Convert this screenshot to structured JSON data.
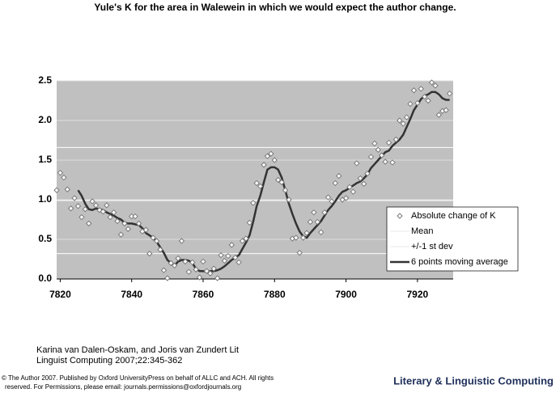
{
  "chart_data": {
    "type": "scatter",
    "title": "Yule's K for the area in Walewein in which we would expect the author change.",
    "x": [
      7819,
      7820,
      7821,
      7822,
      7823,
      7824,
      7825,
      7826,
      7827,
      7828,
      7829,
      7830,
      7831,
      7832,
      7833,
      7834,
      7835,
      7836,
      7837,
      7838,
      7839,
      7840,
      7841,
      7842,
      7843,
      7844,
      7845,
      7846,
      7847,
      7848,
      7849,
      7850,
      7851,
      7852,
      7853,
      7854,
      7855,
      7856,
      7857,
      7858,
      7859,
      7860,
      7861,
      7862,
      7863,
      7864,
      7865,
      7866,
      7867,
      7868,
      7869,
      7870,
      7871,
      7872,
      7873,
      7874,
      7875,
      7876,
      7877,
      7878,
      7879,
      7880,
      7881,
      7882,
      7883,
      7884,
      7885,
      7886,
      7887,
      7888,
      7889,
      7890,
      7891,
      7892,
      7893,
      7894,
      7895,
      7896,
      7897,
      7898,
      7899,
      7900,
      7901,
      7902,
      7903,
      7904,
      7905,
      7906,
      7907,
      7908,
      7909,
      7910,
      7911,
      7912,
      7913,
      7914,
      7915,
      7916,
      7917,
      7918,
      7919,
      7920,
      7921,
      7922,
      7923,
      7924,
      7925,
      7926,
      7927,
      7928,
      7929
    ],
    "xlim": [
      7819,
      7930
    ],
    "xticks": [
      7820,
      7840,
      7860,
      7880,
      7900,
      7920
    ],
    "ylim": [
      0,
      2.5
    ],
    "yticks": [
      {
        "value": 0,
        "label": "0.0"
      },
      0.5,
      {
        "value": 1,
        "label": "1.0"
      },
      1.5,
      {
        "value": 2,
        "label": "2.0"
      },
      2.5
    ],
    "grid": true,
    "legend_position": "right",
    "series": [
      {
        "name": "Absolute change of K",
        "style": "marker",
        "color": "#7a7a7a",
        "values": [
          1.12,
          1.34,
          1.28,
          1.13,
          0.89,
          1.02,
          0.92,
          0.78,
          0.88,
          0.7,
          0.98,
          0.93,
          0.87,
          0.85,
          0.93,
          0.78,
          0.84,
          0.73,
          0.56,
          0.7,
          0.63,
          0.79,
          0.79,
          0.7,
          0.6,
          0.62,
          0.32,
          0.52,
          0.48,
          0.37,
          0.11,
          0.01,
          0.2,
          0.17,
          0.26,
          0.48,
          0.22,
          0.09,
          0.21,
          0.12,
          0.02,
          0.22,
          0.1,
          0.07,
          0.13,
          0.01,
          0.3,
          0.23,
          0.29,
          0.43,
          0.27,
          0.21,
          0.48,
          0.51,
          0.71,
          0.96,
          1.21,
          1.17,
          1.44,
          1.55,
          1.58,
          1.5,
          1.25,
          1.22,
          1.12,
          1.0,
          0.51,
          0.52,
          0.33,
          0.52,
          0.58,
          0.72,
          0.84,
          0.72,
          0.59,
          0.84,
          1.03,
          0.98,
          1.21,
          1.3,
          1.0,
          1.02,
          1.16,
          1.1,
          1.46,
          1.27,
          1.2,
          1.33,
          1.54,
          1.71,
          1.63,
          1.56,
          1.48,
          1.72,
          1.47,
          1.76,
          2.0,
          1.96,
          2.04,
          2.21,
          2.38,
          2.22,
          2.4,
          2.3,
          2.25,
          2.48,
          2.44,
          2.07,
          2.12,
          2.13,
          2.34
        ]
      },
      {
        "name": "Mean",
        "style": "hline",
        "color": "#ffffff",
        "values": [
          0.99
        ]
      },
      {
        "name": "+/-1 st dev",
        "style": "hline",
        "color": "#ffffff",
        "values": [
          0.32,
          1.66
        ]
      },
      {
        "name": "6 points moving average",
        "style": "line",
        "color": "#333333",
        "values": [
          null,
          null,
          null,
          null,
          null,
          null,
          1.12,
          1.05,
          0.95,
          0.88,
          0.87,
          0.89,
          0.88,
          0.87,
          0.84,
          0.82,
          0.8,
          0.77,
          0.75,
          0.71,
          0.7,
          0.7,
          0.69,
          0.68,
          0.64,
          0.58,
          0.55,
          0.52,
          0.47,
          0.4,
          0.33,
          0.24,
          0.2,
          0.17,
          0.22,
          0.24,
          0.24,
          0.23,
          0.2,
          0.13,
          0.1,
          0.1,
          0.09,
          0.1,
          0.1,
          0.11,
          0.13,
          0.16,
          0.2,
          0.24,
          0.27,
          0.3,
          0.38,
          0.46,
          0.55,
          0.72,
          0.92,
          1.05,
          1.22,
          1.38,
          1.41,
          1.41,
          1.38,
          1.28,
          1.12,
          0.95,
          0.82,
          0.7,
          0.6,
          0.54,
          0.52,
          0.58,
          0.63,
          0.68,
          0.73,
          0.8,
          0.87,
          0.92,
          0.98,
          1.05,
          1.1,
          1.12,
          1.15,
          1.18,
          1.21,
          1.23,
          1.27,
          1.32,
          1.4,
          1.45,
          1.5,
          1.55,
          1.6,
          1.62,
          1.68,
          1.72,
          1.76,
          1.82,
          1.92,
          2.02,
          2.13,
          2.2,
          2.27,
          2.31,
          2.33,
          2.36,
          2.36,
          2.33,
          2.28,
          2.26,
          2.26
        ]
      }
    ]
  },
  "footer": {
    "citation": [
      "Karina van Dalen-Oskam, and Joris van Zundert Lit",
      "Linguist Computing 2007;22:345-362"
    ],
    "copyright": [
      "© The Author 2007. Published by Oxford UniversityPress on behalf of ALLC and ACH. All rights",
      "reserved. For Permissions, please email: journals.permissions@oxfordjournals.org"
    ],
    "journal": "Literary & Linguistic Computing"
  }
}
